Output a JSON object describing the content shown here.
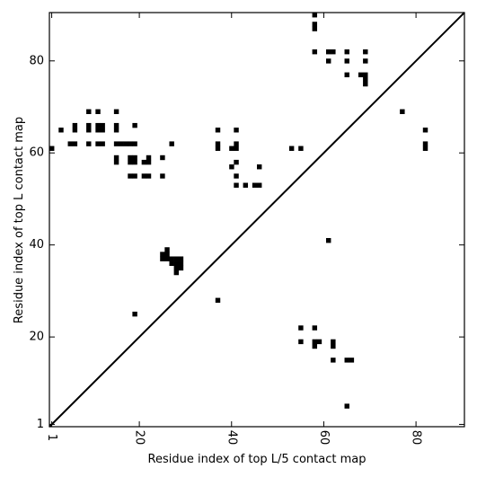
{
  "chart_data": {
    "type": "scatter",
    "xlabel": "Residue index of top L/5 contact map",
    "ylabel": "Residue index of top L contact map",
    "xlim": [
      0.5,
      90.5
    ],
    "ylim": [
      0.5,
      90.5
    ],
    "x_ticks": [
      1,
      20,
      40,
      60,
      80
    ],
    "y_ticks": [
      1,
      20,
      40,
      60,
      80
    ],
    "diagonal": true,
    "marker": "square",
    "marker_color": "#000000",
    "grid": false,
    "upper_triangle_points": [
      [
        1,
        61
      ],
      [
        3,
        65
      ],
      [
        5,
        62
      ],
      [
        6,
        62
      ],
      [
        6,
        65
      ],
      [
        6,
        66
      ],
      [
        9,
        62
      ],
      [
        9,
        65
      ],
      [
        9,
        66
      ],
      [
        9,
        69
      ],
      [
        11,
        62
      ],
      [
        11,
        65
      ],
      [
        11,
        66
      ],
      [
        11,
        69
      ],
      [
        12,
        62
      ],
      [
        12,
        65
      ],
      [
        12,
        66
      ],
      [
        15,
        58
      ],
      [
        15,
        59
      ],
      [
        15,
        62
      ],
      [
        15,
        65
      ],
      [
        15,
        66
      ],
      [
        15,
        69
      ],
      [
        16,
        62
      ],
      [
        17,
        62
      ],
      [
        18,
        55
      ],
      [
        18,
        58
      ],
      [
        18,
        59
      ],
      [
        18,
        62
      ],
      [
        19,
        55
      ],
      [
        19,
        58
      ],
      [
        19,
        59
      ],
      [
        19,
        62
      ],
      [
        19,
        66
      ],
      [
        21,
        55
      ],
      [
        21,
        58
      ],
      [
        22,
        55
      ],
      [
        22,
        58
      ],
      [
        22,
        59
      ],
      [
        25,
        55
      ],
      [
        25,
        59
      ],
      [
        27,
        62
      ],
      [
        37,
        61
      ],
      [
        37,
        62
      ],
      [
        37,
        65
      ],
      [
        40,
        57
      ],
      [
        40,
        61
      ],
      [
        41,
        53
      ],
      [
        41,
        55
      ],
      [
        41,
        58
      ],
      [
        41,
        61
      ],
      [
        41,
        62
      ],
      [
        41,
        65
      ],
      [
        43,
        53
      ],
      [
        45,
        53
      ],
      [
        46,
        53
      ],
      [
        46,
        57
      ],
      [
        53,
        61
      ],
      [
        55,
        61
      ],
      [
        58,
        82
      ],
      [
        58,
        87
      ],
      [
        58,
        88
      ],
      [
        58,
        90
      ],
      [
        61,
        80
      ],
      [
        61,
        82
      ],
      [
        62,
        82
      ],
      [
        65,
        77
      ],
      [
        65,
        80
      ],
      [
        65,
        82
      ],
      [
        68,
        77
      ],
      [
        69,
        75
      ],
      [
        69,
        76
      ],
      [
        69,
        77
      ],
      [
        69,
        80
      ],
      [
        69,
        82
      ],
      [
        77,
        69
      ],
      [
        82,
        61
      ],
      [
        82,
        62
      ],
      [
        82,
        65
      ]
    ],
    "lower_triangle_points": [
      [
        19,
        25
      ],
      [
        37,
        28
      ],
      [
        25,
        37
      ],
      [
        25,
        38
      ],
      [
        26,
        37
      ],
      [
        26,
        38
      ],
      [
        26,
        39
      ],
      [
        27,
        36
      ],
      [
        27,
        37
      ],
      [
        28,
        34
      ],
      [
        28,
        35
      ],
      [
        28,
        36
      ],
      [
        28,
        37
      ],
      [
        29,
        35
      ],
      [
        29,
        36
      ],
      [
        29,
        37
      ],
      [
        55,
        19
      ],
      [
        55,
        22
      ],
      [
        58,
        18
      ],
      [
        58,
        19
      ],
      [
        58,
        22
      ],
      [
        59,
        19
      ],
      [
        62,
        15
      ],
      [
        62,
        18
      ],
      [
        62,
        19
      ],
      [
        61,
        41
      ],
      [
        65,
        5
      ],
      [
        65,
        15
      ],
      [
        66,
        15
      ]
    ]
  }
}
